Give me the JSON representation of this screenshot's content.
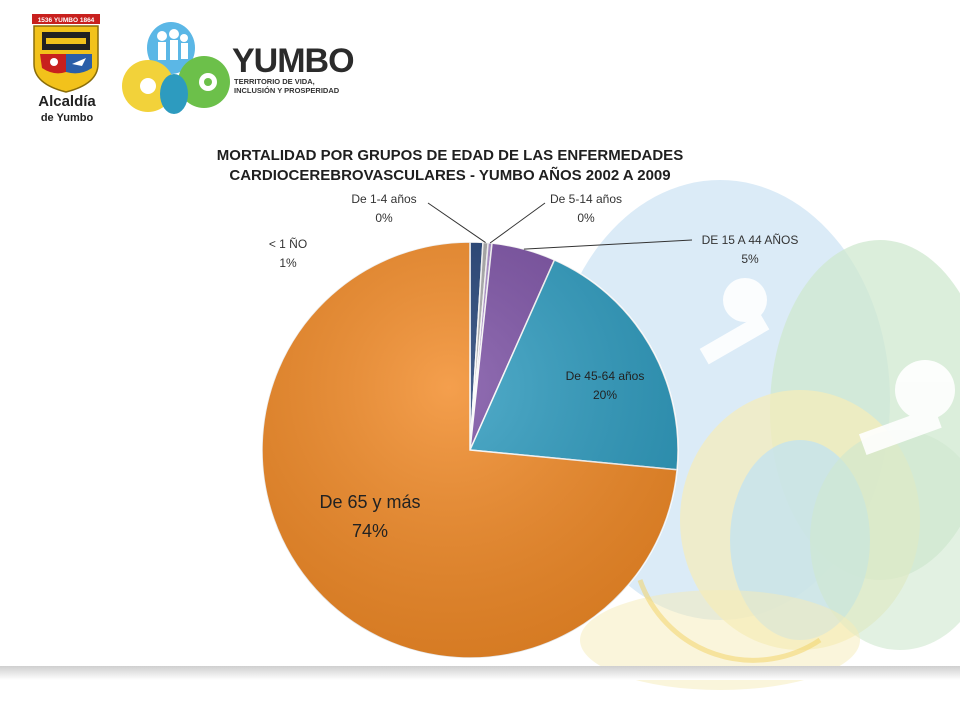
{
  "header": {
    "alcaldia_logo_text": "1536 YUMBO 1864",
    "alcaldia_label": "Alcaldía",
    "alcaldia_sublabel": "de Yumbo",
    "yumbo_brand": "YUMBO",
    "yumbo_tagline_line1": "TERRITORIO DE VIDA,",
    "yumbo_tagline_line2": "INCLUSIÓN Y PROSPERIDAD"
  },
  "colors": {
    "orange": "#f28a26",
    "teal": "#2d9bbf",
    "purple": "#7a4fa3",
    "gray": "#a9a9a9",
    "navy": "#1f3f74",
    "lavender": "#a98bc9"
  },
  "chart_data": {
    "type": "pie",
    "title_line1": "MORTALIDAD POR GRUPOS DE EDAD DE LAS ENFERMEDADES",
    "title_line2": "CARDIOCEREBROVASCULARES - YUMBO AÑOS 2002 A 2009",
    "slices": [
      {
        "label": "< 1 ÑO",
        "value": 1,
        "pct_label": "1%",
        "color": "#1f3f74"
      },
      {
        "label": "De 1-4 años",
        "value": 0.4,
        "pct_label": "0%",
        "color": "#a9a9a9"
      },
      {
        "label": "De 5-14 años",
        "value": 0.3,
        "pct_label": "0%",
        "color": "#a98bc9"
      },
      {
        "label": "DE 15 A 44 AÑOS",
        "value": 5,
        "pct_label": "5%",
        "color": "#7a4fa3"
      },
      {
        "label": "De 45-64 años",
        "value": 20,
        "pct_label": "20%",
        "color": "#2d9bbf"
      },
      {
        "label": "De 65 y más",
        "value": 74,
        "pct_label": "74%",
        "color": "#f28a26"
      }
    ]
  }
}
